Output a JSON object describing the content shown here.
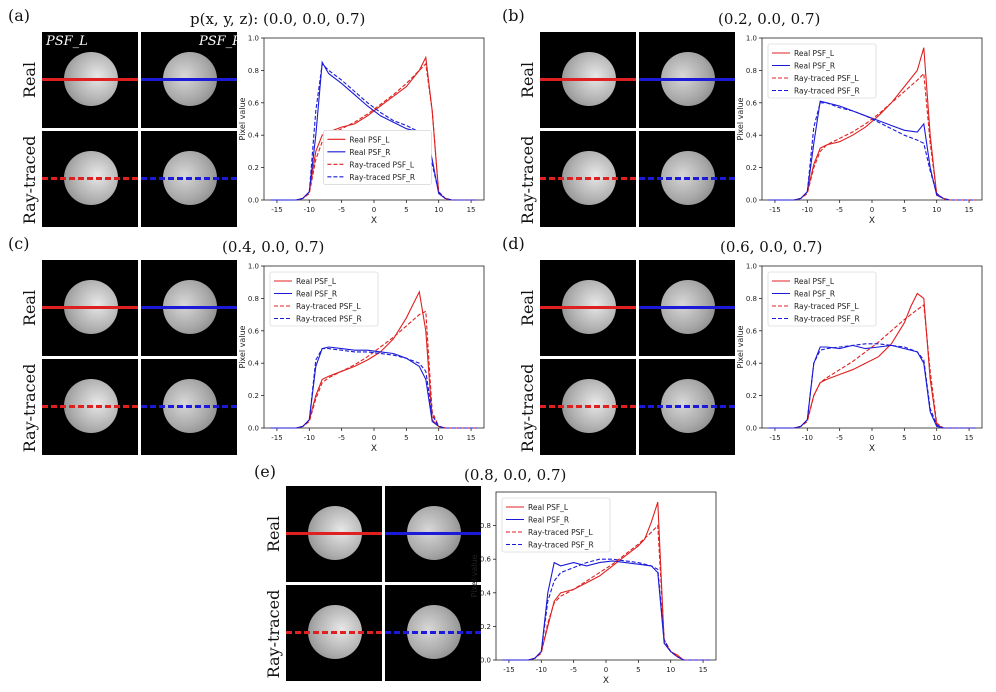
{
  "panels": [
    {
      "label": "(a)",
      "title": "p(x, y, z): (0.0, 0.0, 0.7)"
    },
    {
      "label": "(b)",
      "title": "(0.2, 0.0, 0.7)"
    },
    {
      "label": "(c)",
      "title": "(0.4, 0.0, 0.7)"
    },
    {
      "label": "(d)",
      "title": "(0.6, 0.0, 0.7)"
    },
    {
      "label": "(e)",
      "title": "(0.8, 0.0, 0.7)"
    }
  ],
  "row_labels": {
    "real": "Real",
    "raytraced": "Ray-traced"
  },
  "psf_labels": {
    "left": "PSF_L",
    "right": "PSF_R"
  },
  "colors": {
    "left": "#e02020",
    "right": "#1a1ad8"
  },
  "chart_data": [
    {
      "type": "line",
      "title": "p(x, y, z): (0.0, 0.0, 0.7)",
      "xlabel": "X",
      "ylabel": "Pixel value",
      "xlim": [
        -17,
        17
      ],
      "ylim": [
        0,
        1.0
      ],
      "xticks": [
        -15,
        -10,
        -5,
        0,
        5,
        10,
        15
      ],
      "yticks": [
        0.0,
        0.2,
        0.4,
        0.6,
        0.8,
        1.0
      ],
      "legend_position": "bottom-center",
      "series": [
        {
          "name": "Real PSF_L",
          "style": "solid",
          "color": "red",
          "x": [
            -16,
            -12,
            -11,
            -10,
            -9,
            -8,
            -7,
            -5,
            -3,
            -1,
            1,
            3,
            5,
            6,
            7,
            8,
            9,
            10,
            11,
            12,
            16
          ],
          "y": [
            0,
            0,
            0.01,
            0.05,
            0.3,
            0.4,
            0.42,
            0.45,
            0.47,
            0.52,
            0.58,
            0.64,
            0.7,
            0.75,
            0.8,
            0.88,
            0.55,
            0.04,
            0.01,
            0,
            0
          ]
        },
        {
          "name": "Real PSF_R",
          "style": "solid",
          "color": "blue",
          "x": [
            -16,
            -12,
            -11,
            -10,
            -9,
            -8,
            -7,
            -5,
            -3,
            -1,
            1,
            3,
            5,
            7,
            8,
            9,
            10,
            11,
            12,
            16
          ],
          "y": [
            0,
            0,
            0.01,
            0.05,
            0.4,
            0.85,
            0.78,
            0.72,
            0.65,
            0.58,
            0.52,
            0.48,
            0.44,
            0.42,
            0.42,
            0.25,
            0.04,
            0.01,
            0,
            0
          ]
        },
        {
          "name": "Ray-traced PSF_L",
          "style": "dashed",
          "color": "red",
          "x": [
            -16,
            -12,
            -11,
            -10,
            -9,
            -8,
            -7,
            -5,
            -3,
            -1,
            1,
            3,
            5,
            7,
            8,
            9,
            10,
            11,
            12,
            16
          ],
          "y": [
            0,
            0,
            0.01,
            0.04,
            0.25,
            0.36,
            0.4,
            0.44,
            0.48,
            0.53,
            0.59,
            0.65,
            0.72,
            0.8,
            0.84,
            0.55,
            0.05,
            0.01,
            0,
            0
          ]
        },
        {
          "name": "Ray-traced PSF_R",
          "style": "dashed",
          "color": "blue",
          "x": [
            -16,
            -12,
            -11,
            -10,
            -9,
            -8,
            -7,
            -5,
            -3,
            -1,
            1,
            3,
            5,
            7,
            8,
            9,
            10,
            11,
            12,
            16
          ],
          "y": [
            0,
            0,
            0.01,
            0.05,
            0.55,
            0.84,
            0.8,
            0.74,
            0.67,
            0.6,
            0.54,
            0.49,
            0.46,
            0.42,
            0.38,
            0.22,
            0.05,
            0.01,
            0,
            0
          ]
        }
      ]
    },
    {
      "type": "line",
      "title": "(0.2, 0.0, 0.7)",
      "xlabel": "X",
      "ylabel": "Pixel value",
      "xlim": [
        -17,
        17
      ],
      "ylim": [
        0,
        1.0
      ],
      "xticks": [
        -15,
        -10,
        -5,
        0,
        5,
        10,
        15
      ],
      "yticks": [
        0.0,
        0.2,
        0.4,
        0.6,
        0.8,
        1.0
      ],
      "legend_position": "top-left",
      "series": [
        {
          "name": "Real PSF_L",
          "style": "solid",
          "color": "red",
          "x": [
            -16,
            -12,
            -11,
            -10,
            -9,
            -8,
            -7,
            -5,
            -3,
            -1,
            1,
            3,
            5,
            7,
            8,
            9,
            10,
            11,
            12,
            16
          ],
          "y": [
            0,
            0,
            0.01,
            0.05,
            0.22,
            0.32,
            0.34,
            0.36,
            0.4,
            0.45,
            0.52,
            0.6,
            0.7,
            0.8,
            0.94,
            0.4,
            0.03,
            0.01,
            0,
            0
          ]
        },
        {
          "name": "Real PSF_R",
          "style": "solid",
          "color": "blue",
          "x": [
            -16,
            -12,
            -11,
            -10,
            -9,
            -8,
            -7,
            -5,
            -3,
            -1,
            1,
            3,
            5,
            7,
            8,
            9,
            10,
            11,
            12,
            16
          ],
          "y": [
            0,
            0,
            0.01,
            0.05,
            0.35,
            0.61,
            0.6,
            0.58,
            0.55,
            0.52,
            0.49,
            0.46,
            0.43,
            0.42,
            0.47,
            0.2,
            0.03,
            0.01,
            0,
            0
          ]
        },
        {
          "name": "Ray-traced PSF_L",
          "style": "dashed",
          "color": "red",
          "x": [
            -16,
            -12,
            -11,
            -10,
            -9,
            -8,
            -7,
            -5,
            -3,
            -1,
            1,
            3,
            5,
            7,
            8,
            9,
            10,
            11,
            12,
            16
          ],
          "y": [
            0,
            0,
            0.01,
            0.04,
            0.2,
            0.3,
            0.34,
            0.38,
            0.42,
            0.47,
            0.53,
            0.6,
            0.67,
            0.74,
            0.78,
            0.35,
            0.04,
            0.01,
            0,
            0
          ]
        },
        {
          "name": "Ray-traced PSF_R",
          "style": "dashed",
          "color": "blue",
          "x": [
            -16,
            -12,
            -11,
            -10,
            -9,
            -8,
            -7,
            -5,
            -3,
            -1,
            1,
            3,
            5,
            7,
            8,
            9,
            10,
            11,
            12,
            16
          ],
          "y": [
            0,
            0,
            0.01,
            0.05,
            0.45,
            0.6,
            0.6,
            0.57,
            0.55,
            0.52,
            0.48,
            0.44,
            0.4,
            0.37,
            0.35,
            0.18,
            0.04,
            0.01,
            0,
            0
          ]
        }
      ]
    },
    {
      "type": "line",
      "title": "(0.4, 0.0, 0.7)",
      "xlabel": "X",
      "ylabel": "Pixel value",
      "xlim": [
        -17,
        17
      ],
      "ylim": [
        0,
        1.0
      ],
      "xticks": [
        -15,
        -10,
        -5,
        0,
        5,
        10,
        15
      ],
      "yticks": [
        0.0,
        0.2,
        0.4,
        0.6,
        0.8,
        1.0
      ],
      "legend_position": "top-left",
      "series": [
        {
          "name": "Real PSF_L",
          "style": "solid",
          "color": "red",
          "x": [
            -16,
            -12,
            -11,
            -10,
            -9,
            -8,
            -7,
            -5,
            -3,
            -1,
            1,
            3,
            5,
            6,
            7,
            8,
            9,
            10,
            11,
            16
          ],
          "y": [
            0,
            0,
            0.01,
            0.05,
            0.2,
            0.3,
            0.32,
            0.35,
            0.38,
            0.42,
            0.47,
            0.55,
            0.68,
            0.76,
            0.84,
            0.6,
            0.05,
            0.01,
            0,
            0
          ]
        },
        {
          "name": "Real PSF_R",
          "style": "solid",
          "color": "blue",
          "x": [
            -16,
            -12,
            -11,
            -10,
            -9,
            -8,
            -7,
            -5,
            -3,
            -1,
            1,
            3,
            5,
            7,
            8,
            9,
            10,
            11,
            16
          ],
          "y": [
            0,
            0,
            0.01,
            0.05,
            0.38,
            0.49,
            0.5,
            0.49,
            0.48,
            0.48,
            0.47,
            0.46,
            0.43,
            0.38,
            0.3,
            0.04,
            0.01,
            0,
            0
          ]
        },
        {
          "name": "Ray-traced PSF_L",
          "style": "dashed",
          "color": "red",
          "x": [
            -16,
            -12,
            -11,
            -10,
            -9,
            -8,
            -7,
            -5,
            -3,
            -1,
            1,
            3,
            5,
            7,
            8,
            9,
            10,
            11,
            16
          ],
          "y": [
            0,
            0,
            0.01,
            0.04,
            0.18,
            0.28,
            0.31,
            0.35,
            0.39,
            0.44,
            0.5,
            0.56,
            0.63,
            0.7,
            0.72,
            0.1,
            0.01,
            0,
            0
          ]
        },
        {
          "name": "Ray-traced PSF_R",
          "style": "dashed",
          "color": "blue",
          "x": [
            -16,
            -12,
            -11,
            -10,
            -9,
            -8,
            -7,
            -5,
            -3,
            -1,
            1,
            3,
            5,
            7,
            8,
            9,
            10,
            11,
            16
          ],
          "y": [
            0,
            0,
            0.01,
            0.05,
            0.42,
            0.49,
            0.49,
            0.48,
            0.47,
            0.47,
            0.46,
            0.45,
            0.43,
            0.4,
            0.35,
            0.08,
            0.01,
            0,
            0
          ]
        }
      ]
    },
    {
      "type": "line",
      "title": "(0.6, 0.0, 0.7)",
      "xlabel": "X",
      "ylabel": "Pixel value",
      "xlim": [
        -17,
        17
      ],
      "ylim": [
        0,
        1.0
      ],
      "xticks": [
        -15,
        -10,
        -5,
        0,
        5,
        10,
        15
      ],
      "yticks": [
        0.0,
        0.2,
        0.4,
        0.6,
        0.8,
        1.0
      ],
      "legend_position": "top-left",
      "series": [
        {
          "name": "Real PSF_L",
          "style": "solid",
          "color": "red",
          "x": [
            -16,
            -12,
            -11,
            -10,
            -9,
            -8,
            -7,
            -5,
            -3,
            -1,
            1,
            3,
            5,
            6,
            7,
            8,
            9,
            10,
            11,
            16
          ],
          "y": [
            0,
            0,
            0.01,
            0.05,
            0.2,
            0.28,
            0.3,
            0.33,
            0.36,
            0.4,
            0.44,
            0.52,
            0.65,
            0.75,
            0.83,
            0.8,
            0.3,
            0.02,
            0,
            0
          ]
        },
        {
          "name": "Real PSF_R",
          "style": "solid",
          "color": "blue",
          "x": [
            -16,
            -12,
            -11,
            -10,
            -9,
            -8,
            -7,
            -5,
            -3,
            -1,
            1,
            3,
            5,
            7,
            8,
            9,
            10,
            11,
            16
          ],
          "y": [
            0,
            0,
            0.01,
            0.05,
            0.4,
            0.5,
            0.5,
            0.49,
            0.51,
            0.49,
            0.5,
            0.51,
            0.49,
            0.47,
            0.4,
            0.1,
            0.01,
            0,
            0
          ]
        },
        {
          "name": "Ray-traced PSF_L",
          "style": "dashed",
          "color": "red",
          "x": [
            -16,
            -12,
            -11,
            -10,
            -9,
            -8,
            -7,
            -5,
            -3,
            -1,
            1,
            3,
            5,
            7,
            8,
            9,
            10,
            11,
            16
          ],
          "y": [
            0,
            0,
            0.01,
            0.04,
            0.2,
            0.28,
            0.31,
            0.36,
            0.41,
            0.47,
            0.53,
            0.6,
            0.67,
            0.73,
            0.76,
            0.35,
            0.03,
            0,
            0
          ]
        },
        {
          "name": "Ray-traced PSF_R",
          "style": "dashed",
          "color": "blue",
          "x": [
            -16,
            -12,
            -11,
            -10,
            -9,
            -8,
            -7,
            -5,
            -3,
            -1,
            1,
            3,
            5,
            7,
            8,
            9,
            10,
            11,
            16
          ],
          "y": [
            0,
            0,
            0.01,
            0.05,
            0.4,
            0.48,
            0.49,
            0.5,
            0.51,
            0.52,
            0.52,
            0.51,
            0.5,
            0.47,
            0.42,
            0.12,
            0.02,
            0,
            0
          ]
        }
      ]
    },
    {
      "type": "line",
      "title": "(0.8, 0.0, 0.7)",
      "xlabel": "X",
      "ylabel": "Pixel value",
      "xlim": [
        -17,
        17
      ],
      "ylim": [
        0,
        1.0
      ],
      "xticks": [
        -15,
        -10,
        -5,
        0,
        5,
        10,
        15
      ],
      "yticks": [
        0.0,
        0.2,
        0.4,
        0.6,
        0.8
      ],
      "legend_position": "top-left",
      "series": [
        {
          "name": "Real PSF_L",
          "style": "solid",
          "color": "red",
          "x": [
            -16,
            -12,
            -11,
            -10,
            -9,
            -8,
            -7,
            -5,
            -3,
            -1,
            1,
            3,
            5,
            6,
            7,
            8,
            9,
            10,
            11,
            12,
            16
          ],
          "y": [
            0,
            0,
            0.01,
            0.05,
            0.2,
            0.35,
            0.4,
            0.42,
            0.46,
            0.5,
            0.56,
            0.62,
            0.68,
            0.72,
            0.82,
            0.94,
            0.1,
            0.05,
            0.03,
            0,
            0
          ]
        },
        {
          "name": "Real PSF_R",
          "style": "solid",
          "color": "blue",
          "x": [
            -16,
            -12,
            -11,
            -10,
            -9,
            -8,
            -7,
            -5,
            -3,
            -1,
            1,
            3,
            5,
            7,
            8,
            9,
            10,
            11,
            12,
            16
          ],
          "y": [
            0,
            0,
            0.01,
            0.05,
            0.4,
            0.58,
            0.56,
            0.58,
            0.56,
            0.58,
            0.59,
            0.58,
            0.57,
            0.56,
            0.52,
            0.1,
            0.05,
            0.02,
            0,
            0
          ]
        },
        {
          "name": "Ray-traced PSF_L",
          "style": "dashed",
          "color": "red",
          "x": [
            -16,
            -12,
            -11,
            -10,
            -9,
            -8,
            -7,
            -5,
            -3,
            -1,
            1,
            3,
            5,
            7,
            8,
            9,
            10,
            11,
            12,
            16
          ],
          "y": [
            0,
            0,
            0.01,
            0.04,
            0.22,
            0.34,
            0.38,
            0.42,
            0.47,
            0.52,
            0.57,
            0.63,
            0.69,
            0.76,
            0.8,
            0.12,
            0.05,
            0.02,
            0,
            0
          ]
        },
        {
          "name": "Ray-traced PSF_R",
          "style": "dashed",
          "color": "blue",
          "x": [
            -16,
            -12,
            -11,
            -10,
            -9,
            -8,
            -7,
            -5,
            -3,
            -1,
            1,
            3,
            5,
            7,
            8,
            9,
            10,
            11,
            12,
            16
          ],
          "y": [
            0,
            0,
            0.01,
            0.05,
            0.35,
            0.47,
            0.52,
            0.55,
            0.58,
            0.6,
            0.6,
            0.59,
            0.58,
            0.56,
            0.54,
            0.12,
            0.05,
            0.02,
            0,
            0
          ]
        }
      ]
    }
  ]
}
